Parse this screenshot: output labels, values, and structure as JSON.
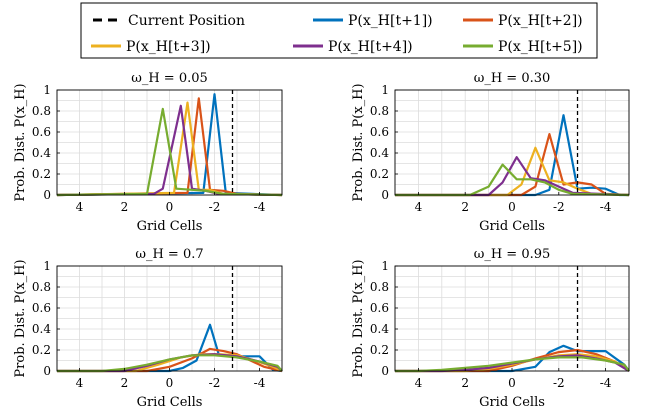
{
  "legend": {
    "entries": [
      {
        "label": "Current Position",
        "color": "#000000",
        "dashed": true
      },
      {
        "label": "P(x_H[t+1])",
        "color": "#0072BD"
      },
      {
        "label": "P(x_H[t+2])",
        "color": "#D95319"
      },
      {
        "label": "P(x_H[t+3])",
        "color": "#EDB120"
      },
      {
        "label": "P(x_H[t+4])",
        "color": "#7E2F8E"
      },
      {
        "label": "P(x_H[t+5])",
        "color": "#77AC30"
      }
    ]
  },
  "chart_data": [
    {
      "type": "line",
      "title": "ω_H = 0.05",
      "xlabel": "Grid Cells",
      "ylabel": "Prob. Dist. P(x_H)",
      "xlim": [
        5,
        -5
      ],
      "x_reversed": true,
      "ylim": [
        0,
        1
      ],
      "xticks": [
        4,
        2,
        0,
        -2,
        -4
      ],
      "yticks": [
        0,
        0.2,
        0.4,
        0.6,
        0.8,
        1
      ],
      "grid": true,
      "current_position": -2.8,
      "series": [
        {
          "name": "P(x_H[t+1])",
          "color": "#0072BD",
          "x": [
            5,
            -1.5,
            -2.0,
            -2.5,
            -5
          ],
          "y": [
            0,
            0.02,
            0.96,
            0.02,
            0
          ]
        },
        {
          "name": "P(x_H[t+2])",
          "color": "#D95319",
          "x": [
            5,
            -0.8,
            -1.3,
            -1.8,
            -2.4,
            -3.0,
            -5
          ],
          "y": [
            0,
            0.02,
            0.92,
            0.05,
            0.04,
            0.01,
            0
          ]
        },
        {
          "name": "P(x_H[t+3])",
          "color": "#EDB120",
          "x": [
            5,
            -0.2,
            -0.8,
            -1.3,
            -1.8,
            -2.4,
            -5
          ],
          "y": [
            0,
            0.02,
            0.88,
            0.05,
            0.05,
            0.01,
            0
          ]
        },
        {
          "name": "P(x_H[t+4])",
          "color": "#7E2F8E",
          "x": [
            5,
            0.7,
            0.3,
            -0.5,
            -1.0,
            -1.6,
            -2.2,
            -5
          ],
          "y": [
            0,
            0.01,
            0.06,
            0.85,
            0.06,
            0.04,
            0.01,
            0
          ]
        },
        {
          "name": "P(x_H[t+5])",
          "color": "#77AC30",
          "x": [
            5,
            1.0,
            0.3,
            -0.3,
            -1.0,
            -1.6,
            -2.4,
            -5
          ],
          "y": [
            0,
            0.01,
            0.82,
            0.06,
            0.05,
            0.04,
            0.01,
            0
          ]
        }
      ]
    },
    {
      "type": "line",
      "title": "ω_H = 0.30",
      "xlabel": "Grid Cells",
      "ylabel": "Prob. Dist. P(x_H)",
      "xlim": [
        5,
        -5
      ],
      "x_reversed": true,
      "ylim": [
        0,
        1
      ],
      "xticks": [
        4,
        2,
        0,
        -2,
        -4
      ],
      "yticks": [
        0,
        0.2,
        0.4,
        0.6,
        0.8,
        1
      ],
      "grid": true,
      "current_position": -2.8,
      "series": [
        {
          "name": "P(x_H[t+1])",
          "color": "#0072BD",
          "x": [
            5,
            -1.0,
            -1.6,
            -2.2,
            -2.8,
            -3.4,
            -4.0,
            -4.6,
            -5
          ],
          "y": [
            0,
            0.0,
            0.05,
            0.76,
            0.06,
            0.07,
            0.06,
            0.0,
            0
          ]
        },
        {
          "name": "P(x_H[t+2])",
          "color": "#D95319",
          "x": [
            5,
            -0.4,
            -1.0,
            -1.6,
            -2.2,
            -2.8,
            -3.4,
            -4.0,
            -5
          ],
          "y": [
            0,
            0.0,
            0.08,
            0.58,
            0.1,
            0.12,
            0.1,
            0.01,
            0
          ]
        },
        {
          "name": "P(x_H[t+3])",
          "color": "#EDB120",
          "x": [
            5,
            0.2,
            -0.4,
            -1.0,
            -1.6,
            -2.2,
            -2.8,
            -3.4,
            -5
          ],
          "y": [
            0,
            0.0,
            0.1,
            0.45,
            0.14,
            0.12,
            0.06,
            0.01,
            0
          ]
        },
        {
          "name": "P(x_H[t+4])",
          "color": "#7E2F8E",
          "x": [
            5,
            1.0,
            0.4,
            -0.2,
            -0.8,
            -1.4,
            -2.0,
            -2.6,
            -5
          ],
          "y": [
            0,
            0.0,
            0.12,
            0.36,
            0.16,
            0.14,
            0.08,
            0.02,
            0
          ]
        },
        {
          "name": "P(x_H[t+5])",
          "color": "#77AC30",
          "x": [
            5,
            1.8,
            1.0,
            0.4,
            -0.2,
            -0.8,
            -1.4,
            -2.0,
            -2.6,
            -5
          ],
          "y": [
            0,
            0.0,
            0.08,
            0.29,
            0.15,
            0.15,
            0.12,
            0.05,
            0.01,
            0
          ]
        }
      ]
    },
    {
      "type": "line",
      "title": "ω_H = 0.7",
      "xlabel": "Grid Cells",
      "ylabel": "Prob. Dist. P(x_H)",
      "xlim": [
        5,
        -5
      ],
      "x_reversed": true,
      "ylim": [
        0,
        1
      ],
      "xticks": [
        4,
        2,
        0,
        -2,
        -4
      ],
      "yticks": [
        0,
        0.2,
        0.4,
        0.6,
        0.8,
        1
      ],
      "grid": true,
      "current_position": -2.8,
      "series": [
        {
          "name": "P(x_H[t+1])",
          "color": "#0072BD",
          "x": [
            5,
            0.0,
            -0.6,
            -1.2,
            -1.8,
            -2.2,
            -2.8,
            -3.4,
            -4.0,
            -4.6,
            -5
          ],
          "y": [
            0,
            0.0,
            0.03,
            0.1,
            0.44,
            0.15,
            0.14,
            0.14,
            0.14,
            0.01,
            0
          ]
        },
        {
          "name": "P(x_H[t+2])",
          "color": "#D95319",
          "x": [
            5,
            1.0,
            0.0,
            -1.0,
            -1.8,
            -2.4,
            -3.0,
            -3.6,
            -4.2,
            -4.8,
            -5
          ],
          "y": [
            0,
            0.0,
            0.04,
            0.12,
            0.21,
            0.19,
            0.16,
            0.1,
            0.04,
            0.01,
            0
          ]
        },
        {
          "name": "P(x_H[t+3])",
          "color": "#EDB120",
          "x": [
            5,
            1.5,
            0.5,
            -0.5,
            -1.4,
            -2.2,
            -3.0,
            -3.8,
            -4.6,
            -5
          ],
          "y": [
            0,
            0.0,
            0.06,
            0.13,
            0.16,
            0.16,
            0.15,
            0.1,
            0.04,
            0
          ]
        },
        {
          "name": "P(x_H[t+4])",
          "color": "#7E2F8E",
          "x": [
            5,
            2.0,
            1.0,
            0.0,
            -1.0,
            -2.0,
            -3.0,
            -4.0,
            -4.8,
            -5
          ],
          "y": [
            0,
            0.0,
            0.05,
            0.11,
            0.15,
            0.16,
            0.14,
            0.09,
            0.04,
            0
          ]
        },
        {
          "name": "P(x_H[t+5])",
          "color": "#77AC30",
          "x": [
            5,
            3.0,
            2.0,
            1.0,
            0.0,
            -1.0,
            -2.0,
            -3.0,
            -4.0,
            -4.8,
            -5
          ],
          "y": [
            0,
            0.0,
            0.02,
            0.06,
            0.11,
            0.15,
            0.15,
            0.13,
            0.09,
            0.05,
            0
          ]
        }
      ]
    },
    {
      "type": "line",
      "title": "ω_H = 0.95",
      "xlabel": "Grid Cells",
      "ylabel": "Prob. Dist. P(x_H)",
      "xlim": [
        5,
        -5
      ],
      "x_reversed": true,
      "ylim": [
        0,
        1
      ],
      "xticks": [
        4,
        2,
        0,
        -2,
        -4
      ],
      "yticks": [
        0,
        0.2,
        0.4,
        0.6,
        0.8,
        1
      ],
      "grid": true,
      "current_position": -2.8,
      "series": [
        {
          "name": "P(x_H[t+1])",
          "color": "#0072BD",
          "x": [
            5,
            0.0,
            -1.0,
            -1.6,
            -2.2,
            -2.8,
            -3.4,
            -4.0,
            -4.8,
            -5
          ],
          "y": [
            0,
            0.0,
            0.04,
            0.18,
            0.24,
            0.19,
            0.19,
            0.19,
            0.06,
            0
          ]
        },
        {
          "name": "P(x_H[t+2])",
          "color": "#D95319",
          "x": [
            5,
            1.0,
            0.0,
            -1.0,
            -2.0,
            -2.8,
            -3.6,
            -4.4,
            -5
          ],
          "y": [
            0,
            0.0,
            0.05,
            0.12,
            0.18,
            0.2,
            0.16,
            0.09,
            0
          ]
        },
        {
          "name": "P(x_H[t+3])",
          "color": "#EDB120",
          "x": [
            5,
            2.0,
            1.0,
            0.0,
            -1.0,
            -2.0,
            -2.8,
            -3.6,
            -4.4,
            -5
          ],
          "y": [
            0,
            0.0,
            0.02,
            0.06,
            0.11,
            0.15,
            0.16,
            0.14,
            0.09,
            0
          ]
        },
        {
          "name": "P(x_H[t+4])",
          "color": "#7E2F8E",
          "x": [
            5,
            3.0,
            2.0,
            1.0,
            0.0,
            -1.0,
            -2.0,
            -2.8,
            -3.6,
            -4.4,
            -5
          ],
          "y": [
            0,
            0.0,
            0.01,
            0.03,
            0.07,
            0.11,
            0.14,
            0.15,
            0.12,
            0.08,
            0
          ]
        },
        {
          "name": "P(x_H[t+5])",
          "color": "#77AC30",
          "x": [
            5,
            4.0,
            3.0,
            2.0,
            1.0,
            0.0,
            -1.0,
            -2.0,
            -3.0,
            -4.0,
            -4.8,
            -5
          ],
          "y": [
            0,
            0.0,
            0.01,
            0.03,
            0.05,
            0.08,
            0.11,
            0.13,
            0.13,
            0.1,
            0.06,
            0
          ]
        }
      ]
    }
  ]
}
